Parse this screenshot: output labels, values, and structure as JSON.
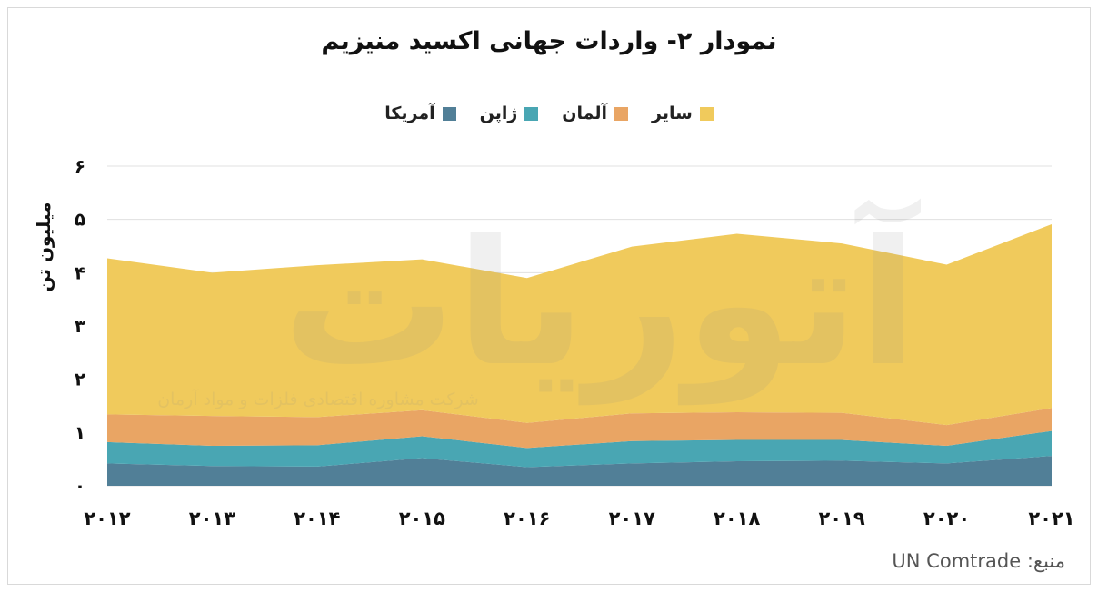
{
  "title": "نمودار ۲- واردات جهانی اکسید منیزیم",
  "source_label": "منبع: UN Comtrade",
  "watermark": {
    "brand": "آتوریات",
    "tagline": "شرکت مشاوره اقتصادی فلزات و مواد آرمان"
  },
  "colors": {
    "usa": "#517f97",
    "japan": "#49a6b3",
    "germany": "#e9a564",
    "other": "#f0ca5c",
    "grid": "#e0e0e0"
  },
  "chart_data": {
    "type": "area",
    "stacked": true,
    "title": "نمودار ۲- واردات جهانی اکسید منیزیم",
    "ylabel": "میلیون تن",
    "xlabel": "",
    "categories": [
      "۲۰۱۲",
      "۲۰۱۳",
      "۲۰۱۴",
      "۲۰۱۵",
      "۲۰۱۶",
      "۲۰۱۷",
      "۲۰۱۸",
      "۲۰۱۹",
      "۲۰۲۰",
      "۲۰۲۱"
    ],
    "ylim": [
      0,
      6
    ],
    "yticks": [
      {
        "value": 0,
        "label": "۰"
      },
      {
        "value": 1,
        "label": "۱"
      },
      {
        "value": 2,
        "label": "۲"
      },
      {
        "value": 3,
        "label": "۳"
      },
      {
        "value": 4,
        "label": "۴"
      },
      {
        "value": 5,
        "label": "۵"
      },
      {
        "value": 6,
        "label": "۶"
      }
    ],
    "grid": true,
    "legend_position": "top",
    "series": [
      {
        "name": "آمریکا",
        "key": "usa",
        "values": [
          0.42,
          0.37,
          0.36,
          0.52,
          0.35,
          0.42,
          0.46,
          0.47,
          0.42,
          0.56
        ]
      },
      {
        "name": "ژاپن",
        "key": "japan",
        "values": [
          0.4,
          0.38,
          0.4,
          0.41,
          0.36,
          0.42,
          0.4,
          0.39,
          0.33,
          0.47
        ]
      },
      {
        "name": "آلمان",
        "key": "germany",
        "values": [
          0.52,
          0.56,
          0.53,
          0.49,
          0.47,
          0.52,
          0.52,
          0.51,
          0.39,
          0.43
        ]
      },
      {
        "name": "سایر",
        "key": "other",
        "values": [
          2.93,
          2.69,
          2.85,
          2.83,
          2.72,
          3.13,
          3.35,
          3.18,
          3.01,
          3.45
        ]
      }
    ]
  }
}
